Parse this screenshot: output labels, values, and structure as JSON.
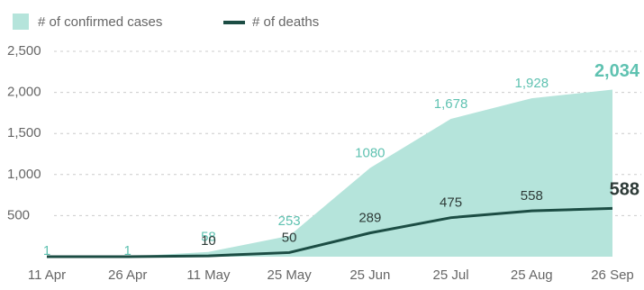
{
  "chart_data": {
    "type": "area-line",
    "categories": [
      "11 Apr",
      "26 Apr",
      "11 May",
      "25 May",
      "25 Jun",
      "25 Jul",
      "25 Aug",
      "26 Sep"
    ],
    "series": [
      {
        "name": "# of confirmed cases",
        "color": "#b5e4db",
        "label_color": "#5fc2b1",
        "values": [
          1,
          1,
          58,
          253,
          1080,
          1678,
          1928,
          2034
        ],
        "value_labels": [
          "1",
          "1",
          "58",
          "253",
          "1080",
          "1,678",
          "1,928",
          "2,034"
        ]
      },
      {
        "name": "# of deaths",
        "color": "#1c4d44",
        "label_color": "#2e3b38",
        "values": [
          0,
          0,
          10,
          50,
          289,
          475,
          558,
          588
        ],
        "value_labels": [
          null,
          null,
          "10",
          "50",
          "289",
          "475",
          "558",
          "588"
        ]
      }
    ],
    "ylim": [
      0,
      2500
    ],
    "yticks": [
      500,
      {
        "value": 1000,
        "label": "1,000"
      },
      {
        "value": 1500,
        "label": "1,500"
      },
      {
        "value": 2000,
        "label": "2,000"
      },
      {
        "value": 2500,
        "label": "2,500"
      }
    ],
    "grid": true
  }
}
